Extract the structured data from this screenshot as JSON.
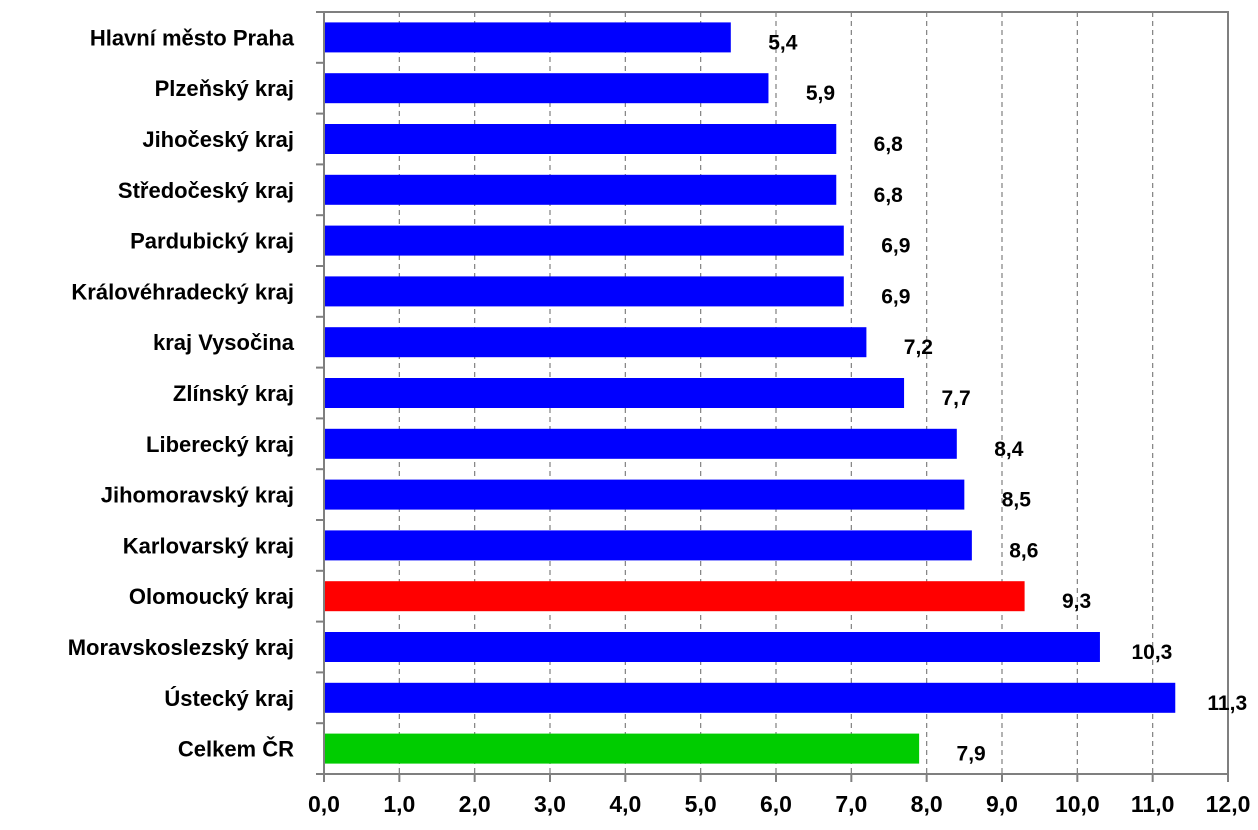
{
  "chart_data": {
    "type": "bar",
    "orientation": "horizontal",
    "categories": [
      "Hlavní město Praha",
      "Plzeňský kraj",
      "Jihočeský kraj",
      "Středočeský kraj",
      "Pardubický kraj",
      "Královéhradecký kraj",
      "kraj Vysočina",
      "Zlínský kraj",
      "Liberecký kraj",
      "Jihomoravský kraj",
      "Karlovarský kraj",
      "Olomoucký kraj",
      "Moravskoslezský kraj",
      "Ústecký kraj",
      "Celkem ČR"
    ],
    "values": [
      5.4,
      5.9,
      6.8,
      6.8,
      6.9,
      6.9,
      7.2,
      7.7,
      8.4,
      8.5,
      8.6,
      9.3,
      10.3,
      11.3,
      7.9
    ],
    "value_labels": [
      "5,4",
      "5,9",
      "6,8",
      "6,8",
      "6,9",
      "6,9",
      "7,2",
      "7,7",
      "8,4",
      "8,5",
      "8,6",
      "9,3",
      "10,3",
      "11,3",
      "7,9"
    ],
    "bar_colors": [
      "#0000ff",
      "#0000ff",
      "#0000ff",
      "#0000ff",
      "#0000ff",
      "#0000ff",
      "#0000ff",
      "#0000ff",
      "#0000ff",
      "#0000ff",
      "#0000ff",
      "#ff0000",
      "#0000ff",
      "#0000ff",
      "#00cc00"
    ],
    "xlim": [
      0,
      12
    ],
    "xticks": [
      0,
      1,
      2,
      3,
      4,
      5,
      6,
      7,
      8,
      9,
      10,
      11,
      12
    ],
    "xtick_labels": [
      "0,0",
      "1,0",
      "2,0",
      "3,0",
      "4,0",
      "5,0",
      "6,0",
      "7,0",
      "8,0",
      "9,0",
      "10,0",
      "11,0",
      "12,0"
    ],
    "grid": "vertical dashed",
    "legend": "none",
    "title": "",
    "xlabel": "",
    "ylabel": ""
  }
}
